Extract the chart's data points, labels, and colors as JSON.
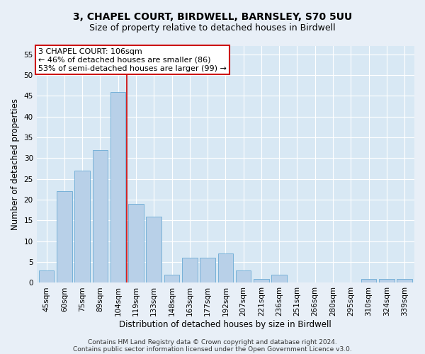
{
  "title_line1": "3, CHAPEL COURT, BIRDWELL, BARNSLEY, S70 5UU",
  "title_line2": "Size of property relative to detached houses in Birdwell",
  "xlabel": "Distribution of detached houses by size in Birdwell",
  "ylabel": "Number of detached properties",
  "footer_line1": "Contains HM Land Registry data © Crown copyright and database right 2024.",
  "footer_line2": "Contains public sector information licensed under the Open Government Licence v3.0.",
  "annotation_line1": "3 CHAPEL COURT: 106sqm",
  "annotation_line2": "← 46% of detached houses are smaller (86)",
  "annotation_line3": "53% of semi-detached houses are larger (99) →",
  "bar_labels": [
    "45sqm",
    "60sqm",
    "75sqm",
    "89sqm",
    "104sqm",
    "119sqm",
    "133sqm",
    "148sqm",
    "163sqm",
    "177sqm",
    "192sqm",
    "207sqm",
    "221sqm",
    "236sqm",
    "251sqm",
    "266sqm",
    "280sqm",
    "295sqm",
    "310sqm",
    "324sqm",
    "339sqm"
  ],
  "bar_values": [
    3,
    22,
    27,
    32,
    46,
    19,
    16,
    2,
    6,
    6,
    7,
    3,
    1,
    2,
    0,
    0,
    0,
    0,
    1,
    1,
    1
  ],
  "bar_color": "#b8d0e8",
  "bar_edge_color": "#6aaad4",
  "vline_x": 4.5,
  "vline_color": "#cc0000",
  "ylim": [
    0,
    57
  ],
  "yticks": [
    0,
    5,
    10,
    15,
    20,
    25,
    30,
    35,
    40,
    45,
    50,
    55
  ],
  "plot_bg_color": "#d8e8f4",
  "fig_bg_color": "#e8eff7",
  "annotation_box_color": "#ffffff",
  "annotation_box_edge": "#cc0000",
  "title_fontsize": 10,
  "subtitle_fontsize": 9,
  "axis_label_fontsize": 8.5,
  "tick_fontsize": 7.5,
  "annotation_fontsize": 8,
  "footer_fontsize": 6.5
}
